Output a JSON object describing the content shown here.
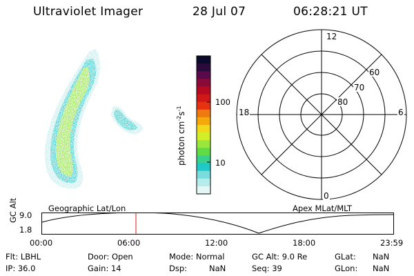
{
  "header": {
    "title": "Ultraviolet Imager",
    "date": "28 Jul 07",
    "time": "06:28:21 UT"
  },
  "colorbar": {
    "unit_label": "photon cm",
    "unit_exp1": "-2",
    "unit_mid": "s",
    "unit_exp2": "-1",
    "ticks": [
      "100",
      "10"
    ],
    "colors": [
      "#0a0a2a",
      "#2a0a3a",
      "#5a0a4a",
      "#8a0a3a",
      "#b40a22",
      "#d01818",
      "#e63212",
      "#f07a10",
      "#f5a80c",
      "#f2d81a",
      "#d2ee2a",
      "#9ae63a",
      "#62da46",
      "#38d08a",
      "#20c8c8",
      "#7adcdc",
      "#b6ecec",
      "#e4f6f6"
    ]
  },
  "polar": {
    "mlt_labels": {
      "top": "12",
      "left": "18",
      "right": "6",
      "bottom": "0"
    },
    "lat_labels": [
      "60",
      "70",
      "80"
    ]
  },
  "timeline": {
    "left_label": "Geographic Lat/Lon",
    "right_label": "Apex MLat/MLT",
    "y_label": "GC Alt",
    "y_ticks": [
      "9.0",
      "1.8"
    ],
    "x_ticks": [
      "00:00",
      "06:00",
      "12:00",
      "18:00",
      "23:59"
    ],
    "marker_color": "#d01818"
  },
  "info": {
    "flt": "Flt: LBHL",
    "ip": "IP: 36.0",
    "door": "Door: Open",
    "gain": "Gain: 14",
    "mode": "Mode: Normal",
    "dsp": "Dsp:",
    "dsp_val": "NaN",
    "gcalt": "GC Alt: 9.0 Re",
    "seq": "Seq: 39",
    "glat": "GLat:",
    "glat_val": "NaN",
    "glon": "GLon:",
    "glon_val": "NaN"
  }
}
